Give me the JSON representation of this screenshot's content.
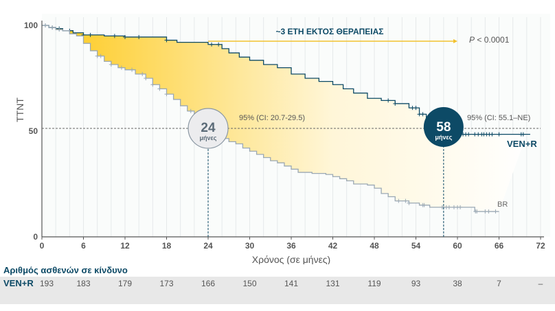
{
  "chart_data": {
    "type": "line",
    "subtype": "kaplan-meier step curves",
    "ylabel": "TTNT",
    "xlabel": "Χρόνος (σε μήνες)",
    "xlim": [
      0,
      72
    ],
    "ylim": [
      0,
      100
    ],
    "x_ticks": [
      0,
      6,
      12,
      18,
      24,
      30,
      36,
      42,
      48,
      54,
      60,
      66,
      72
    ],
    "y_ticks": [
      0,
      50,
      100
    ],
    "grid": "vertical every 2 months",
    "reference_line_y": 50,
    "colors": {
      "ven_r": "#0d4a66",
      "br": "#9aa8b4",
      "shade_start": "#fdc91a",
      "shade_end": "#ffffff",
      "arrow": "#f2c12e"
    },
    "series": [
      {
        "name": "VEN+R",
        "x": [
          0,
          1,
          2,
          3,
          4.5,
          6,
          9,
          12,
          15,
          18,
          19.5,
          22,
          24,
          26,
          27,
          28.5,
          30,
          32,
          34,
          36,
          38,
          40,
          42,
          43.5,
          45,
          47,
          49,
          51,
          53,
          54.5,
          55.5,
          56.5,
          57.5,
          58,
          60,
          70.5
        ],
        "y": [
          100,
          99,
          98.5,
          97.5,
          96.5,
          95.5,
          95,
          94.5,
          94.5,
          93,
          92,
          92,
          91,
          89,
          87,
          85,
          83.5,
          81.5,
          80,
          77,
          75,
          73.5,
          72,
          70,
          68,
          65.5,
          64.5,
          63,
          61,
          58,
          56,
          54.5,
          52,
          50,
          48.5,
          48.5
        ],
        "censored_x": [
          0.5,
          1.5,
          2.5,
          4,
          6,
          7,
          10.5,
          12,
          14,
          18,
          24.5,
          25.5,
          50,
          51,
          53.5,
          54,
          54.5,
          55,
          56,
          60.8,
          61.2,
          61.6,
          62.5,
          63,
          63.5,
          63.8,
          64.2,
          64.6,
          65,
          66,
          69.2,
          69.5
        ]
      },
      {
        "name": "BR",
        "x": [
          0,
          1,
          2,
          3,
          4,
          5,
          6,
          7,
          8,
          9,
          10,
          11,
          12,
          13.5,
          15,
          16,
          17,
          18,
          19,
          20,
          21,
          22,
          23,
          24,
          25,
          26,
          27,
          28,
          29,
          30,
          31,
          32,
          33,
          34,
          35,
          36,
          37,
          39,
          41,
          42,
          43,
          44,
          45,
          47,
          48,
          49,
          50,
          51,
          53,
          54.5,
          56,
          62.5,
          66
        ],
        "y": [
          100,
          99,
          98,
          97.5,
          96,
          95,
          91.5,
          88,
          85.5,
          83,
          81.5,
          80,
          79,
          77,
          75,
          72,
          70,
          67.5,
          65,
          62,
          59.5,
          57.5,
          54,
          50,
          48,
          46.5,
          45,
          44,
          42,
          40.5,
          39,
          37.5,
          36,
          35,
          33.5,
          32,
          30.5,
          30,
          29.5,
          28.5,
          27.5,
          26.5,
          25,
          24.5,
          23,
          20.5,
          19,
          17,
          16,
          15,
          14,
          12,
          12
        ],
        "censored_x": [
          0.5,
          1.5,
          2.5,
          8,
          8.5,
          10,
          11.5,
          13,
          14.5,
          15,
          16,
          17,
          18,
          21.5,
          51.5,
          52.5,
          53,
          55,
          55.2,
          57.8,
          58,
          58.4,
          58.8,
          59.5,
          60,
          60.4,
          62.6,
          62.8,
          64,
          64.5,
          65.5
        ]
      }
    ],
    "annotations": {
      "banner": "~3 ΕΤΗ ΕΚΤΟΣ ΘΕΡΑΠΕΙΑΣ",
      "p_value_prefix": "P",
      "p_value_rest": " < 0.0001",
      "br_median_value": "24",
      "br_median_unit": "μήνες",
      "br_median_ci": "95% (CI: 20.7-29.5)",
      "venr_median_value": "58",
      "venr_median_unit": "μήνες",
      "venr_median_ci": "95% (CI: 55.1–NE)",
      "br_median_x": 24,
      "venr_median_x": 58,
      "arrow_from_x": 24,
      "arrow_to_x": 60
    }
  },
  "risk_table": {
    "title": "Αριθμός ασθενών σε κίνδυνο",
    "row_label": "VEN+R",
    "values": [
      "193",
      "183",
      "179",
      "173",
      "166",
      "150",
      "141",
      "131",
      "119",
      "93",
      "38",
      "7",
      "–"
    ]
  }
}
